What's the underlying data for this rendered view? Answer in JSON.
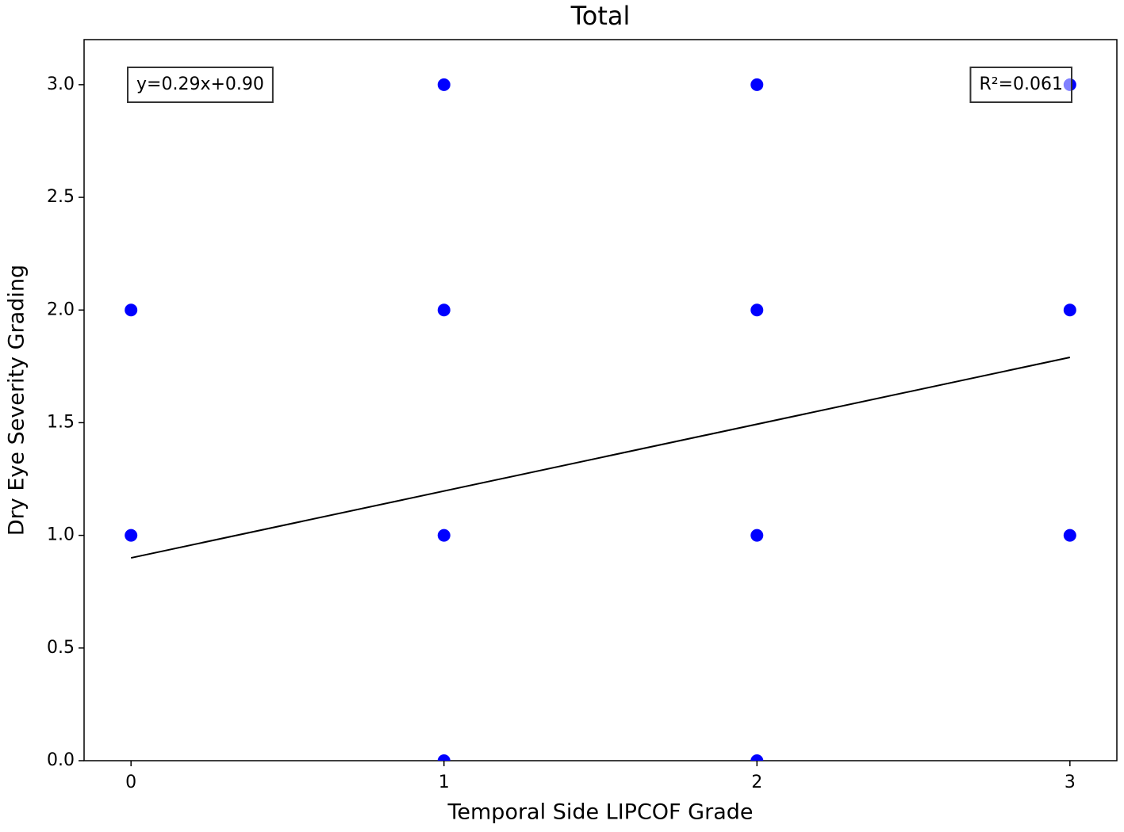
{
  "chart_data": {
    "type": "scatter",
    "title": "Total",
    "x_label": "Temporal Side LIPCOF Grade",
    "y_label": "Dry Eye Severity Grading",
    "x": [
      0,
      0,
      1,
      1,
      1,
      1,
      2,
      2,
      2,
      2,
      3,
      3,
      3
    ],
    "values": [
      2,
      1,
      3,
      2,
      1,
      0,
      3,
      2,
      1,
      0,
      3,
      2,
      1
    ],
    "color": "#0000ff",
    "fit_line": {
      "x": [
        0,
        3
      ],
      "values": [
        0.9,
        1.79
      ],
      "color": "#000000"
    },
    "annotations": [
      "y=0.29x+0.90",
      "R²=0.061"
    ],
    "xlim": [
      -0.15,
      3.15
    ],
    "ylim": [
      0,
      3.2
    ],
    "xticks": [
      0,
      1,
      2,
      3
    ],
    "yticks": [
      {
        "value": 0,
        "label": "0.0"
      },
      {
        "value": 0.5,
        "label": "0.5"
      },
      {
        "value": 1,
        "label": "1.0"
      },
      {
        "value": 1.5,
        "label": "1.5"
      },
      {
        "value": 2,
        "label": "2.0"
      },
      {
        "value": 2.5,
        "label": "2.5"
      },
      {
        "value": 3,
        "label": "3.0"
      }
    ],
    "grid": false
  }
}
